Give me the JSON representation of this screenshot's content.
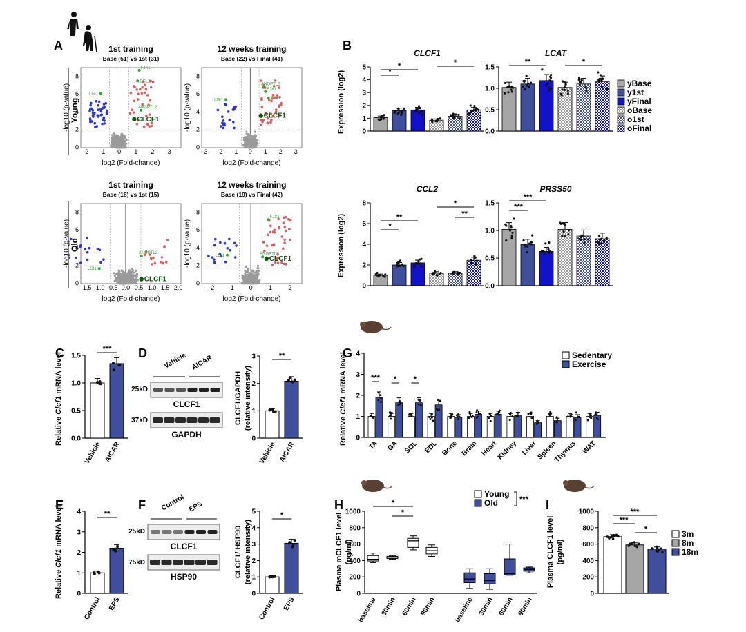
{
  "panel_labels": {
    "A": "A",
    "B": "B",
    "C": "C",
    "D": "D",
    "E": "E",
    "F": "F",
    "G": "G",
    "H": "H",
    "I": "I"
  },
  "panel_A": {
    "row_young": "Young",
    "row_old": "Old",
    "plots": [
      {
        "title": "1st training",
        "subtitle": "Base (51)  vs  1st (31)",
        "xticks": [
          "-2",
          "-1",
          "0",
          "1",
          "2",
          "3"
        ],
        "xlim": [
          -2.3,
          3.7
        ]
      },
      {
        "title": "12 weeks training",
        "subtitle": "Base (22)  vs  Final (41)",
        "xticks": [
          "-3",
          "-2",
          "-1",
          "0",
          "1",
          "2",
          "3"
        ],
        "xlim": [
          -3.2,
          3.4
        ]
      },
      {
        "title": "1st training",
        "subtitle": "Base (18)  vs  1st (15)",
        "xticks": [
          "-1.5",
          "-1.0",
          "-0.5",
          "0.0",
          "0.5",
          "1.0",
          "1.5",
          "2.0"
        ],
        "xlim": [
          -1.7,
          2.1
        ]
      },
      {
        "title": "12 weeks training",
        "subtitle": "Base (19)  vs  Final (42)",
        "xticks": [
          "-2",
          "-1",
          "0",
          "1",
          "2"
        ],
        "xlim": [
          -2.5,
          2.6
        ]
      }
    ],
    "ylabel": "-log10 (p-value)",
    "xlabel": "log2 (Fold-change)",
    "yticks": [
      "0",
      "2",
      "4",
      "6",
      "8"
    ],
    "gene_labels": {
      "clcf1": "CLCF1",
      "lgi1": "LGI1",
      "angptl2": "ANGPTL2",
      "fjx1": "FJX1",
      "ccl2": "CCL2"
    }
  },
  "panel_B": {
    "ylabel": "Expression (log2)",
    "legend": [
      "yBase",
      "y1st",
      "yFinal",
      "oBase",
      "o1st",
      "oFinal"
    ],
    "colors": {
      "base": "#a6a6a6",
      "y1st": "#3f4f9b",
      "yfinal": "#1212c8",
      "checker": "#d9d9d9"
    },
    "charts": [
      {
        "gene": "CLCF1",
        "values": [
          1.05,
          1.6,
          1.65,
          0.85,
          1.15,
          1.65
        ],
        "ylim": [
          0,
          5
        ],
        "yticks": [
          "0",
          "1",
          "2",
          "3",
          "4",
          "5"
        ]
      },
      {
        "gene": "LCAT",
        "values": [
          1.02,
          1.1,
          1.18,
          1.02,
          1.1,
          1.15
        ],
        "ylim": [
          0,
          1.5
        ],
        "yticks": [
          "0.0",
          "0.5",
          "1.0",
          "1.5"
        ]
      },
      {
        "gene": "CCL2",
        "values": [
          1.0,
          2.0,
          2.2,
          1.2,
          1.2,
          2.45
        ],
        "ylim": [
          0,
          8
        ],
        "yticks": [
          "0",
          "2",
          "4",
          "6",
          "8"
        ]
      },
      {
        "gene": "PRSS50",
        "values": [
          1.02,
          0.75,
          0.62,
          1.02,
          0.9,
          0.85
        ],
        "ylim": [
          0,
          1.5
        ],
        "yticks": [
          "0.0",
          "0.5",
          "1.0",
          "1.5"
        ]
      }
    ],
    "sig": [
      "*",
      "**",
      "***"
    ]
  },
  "panel_C": {
    "ylabel_1": "Relative ",
    "ylabel_gene": "Clcf1",
    "ylabel_2": " mRNA level",
    "categories": [
      "Vehicle",
      "AICAR"
    ],
    "values": [
      1.0,
      1.35
    ],
    "yticks": [
      "0.0",
      "0.5",
      "1.0",
      "1.5"
    ],
    "sig": "***"
  },
  "panel_D": {
    "lanes_left": "Vehicle",
    "lanes_right": "AICAR",
    "band1": "CLCF1",
    "band2": "GAPDH",
    "mw1": "25kD",
    "mw2": "37kD",
    "ylabel_1": "CLCF1/GAPDH",
    "ylabel_2": "(relative intensity)",
    "categories": [
      "Vehicle",
      "AICAR"
    ],
    "values": [
      1.0,
      2.08
    ],
    "yticks": [
      "0",
      "1",
      "2",
      "3"
    ],
    "sig": "**"
  },
  "panel_E": {
    "ylabel_1": "Relative ",
    "ylabel_gene": "Clcf1",
    "ylabel_2": " mRNA level",
    "categories": [
      "Control",
      "EPS"
    ],
    "values": [
      1.0,
      2.2
    ],
    "yticks": [
      "0",
      "1",
      "2",
      "3",
      "4"
    ],
    "sig": "**"
  },
  "panel_F": {
    "lanes_left": "Control",
    "lanes_right": "EPS",
    "band1": "CLCF1",
    "band2": "HSP90",
    "mw1": "25kD",
    "mw2": "75kD",
    "ylabel_1": "CLCF1/ HSP90",
    "ylabel_2": "(relative intensity)",
    "categories": [
      "Control",
      "EPS"
    ],
    "values": [
      1.0,
      3.05
    ],
    "yticks": [
      "0",
      "1",
      "2",
      "3",
      "4",
      "5"
    ],
    "sig": "*"
  },
  "panel_G": {
    "ylabel_1": "Relative ",
    "ylabel_gene": "Clcf1",
    "ylabel_2": " mRNA level",
    "legend": [
      "Sedentary",
      "Exercise"
    ],
    "chart_data": {
      "type": "bar",
      "categories": [
        "TA",
        "GA",
        "SOL",
        "EDL",
        "Bone",
        "Brain",
        "Heart",
        "Kidney",
        "Liver",
        "Spleen",
        "Thymus",
        "WAT"
      ],
      "series": [
        {
          "name": "Sedentary",
          "values": [
            1.0,
            1.0,
            1.0,
            1.0,
            1.0,
            1.0,
            1.0,
            1.0,
            1.0,
            1.0,
            1.0,
            1.0
          ]
        },
        {
          "name": "Exercise",
          "values": [
            1.9,
            1.65,
            1.65,
            1.55,
            0.95,
            1.1,
            1.1,
            1.05,
            0.7,
            0.8,
            0.95,
            1.05
          ]
        }
      ],
      "ylim": [
        0,
        4
      ]
    },
    "yticks": [
      "0",
      "1",
      "2",
      "3",
      "4"
    ],
    "sig": [
      "***",
      "*",
      "*"
    ]
  },
  "panel_H": {
    "ylabel_1": "Plasma mCLCF1 level",
    "ylabel_2": "(pg/ml)",
    "legend": [
      "Young",
      "Old"
    ],
    "sig_legend": "***",
    "categories": [
      "baseline",
      "30min",
      "60min",
      "90min",
      "baseline",
      "30min",
      "60min",
      "90min"
    ],
    "yticks": [
      "0",
      "200",
      "400",
      "600",
      "800",
      "1000"
    ],
    "sig": [
      "*",
      "*"
    ]
  },
  "panel_I": {
    "ylabel_1": "Plasma CLCF1 level",
    "ylabel_2": "(pg/ml)",
    "legend": [
      "3m",
      "8m",
      "18m"
    ],
    "values": [
      690,
      590,
      540
    ],
    "yticks": [
      "0",
      "200",
      "400",
      "600",
      "800",
      "1000"
    ],
    "sig": [
      "***",
      "***",
      "*"
    ]
  }
}
